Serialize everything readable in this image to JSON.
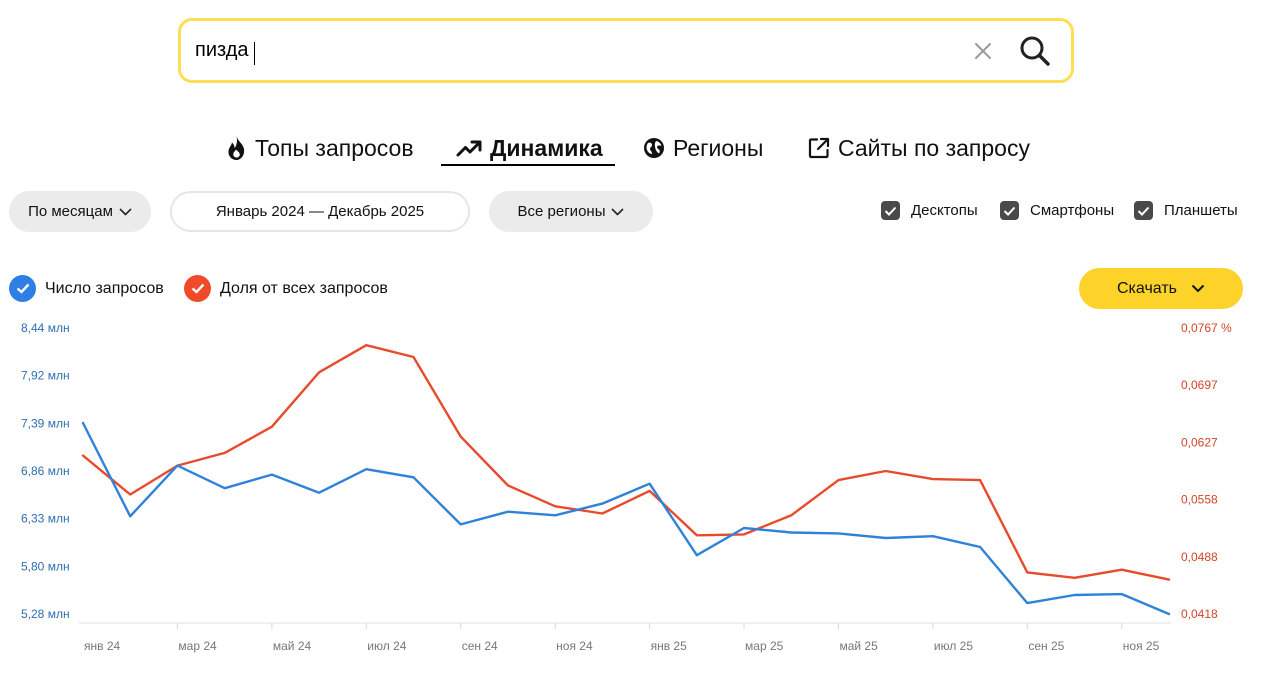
{
  "search": {
    "query": "пизда"
  },
  "tabs": [
    {
      "label": "Топы запросов",
      "icon": "flame-icon",
      "active": false
    },
    {
      "label": "Динамика",
      "icon": "trend-up-icon",
      "active": true
    },
    {
      "label": "Регионы",
      "icon": "globe-icon",
      "active": false
    },
    {
      "label": "Сайты по запросу",
      "icon": "external-link-icon",
      "active": false
    }
  ],
  "filters": {
    "period_label": "По месяцам",
    "date_range_label": "Январь 2024 — Декабрь 2025",
    "region_label": "Все регионы"
  },
  "devices": [
    {
      "label": "Десктопы",
      "checked": true
    },
    {
      "label": "Смартфоны",
      "checked": true
    },
    {
      "label": "Планшеты",
      "checked": true
    }
  ],
  "legend": {
    "requests_label": "Число запросов",
    "share_label": "Доля от всех запросов"
  },
  "download_label": "Скачать",
  "colors": {
    "accent_yellow": "#fdd32a",
    "search_border": "#fdde55",
    "series_requests": "#2f82d8",
    "series_share": "#e84b2c",
    "legend_blue": "#2e7ee6",
    "legend_red": "#f04a2a"
  },
  "chart_data": {
    "type": "line",
    "x_tick_labels": [
      "янв 24",
      "мар 24",
      "май 24",
      "июл 24",
      "сен 24",
      "ноя 24",
      "янв 25",
      "мар 25",
      "май 25",
      "июл 25",
      "сен 25",
      "ноя 25"
    ],
    "x": [
      "2024-01",
      "2024-02",
      "2024-03",
      "2024-04",
      "2024-05",
      "2024-06",
      "2024-07",
      "2024-08",
      "2024-09",
      "2024-10",
      "2024-11",
      "2024-12",
      "2025-01",
      "2025-02",
      "2025-03",
      "2025-04",
      "2025-05",
      "2025-06",
      "2025-07",
      "2025-08",
      "2025-09",
      "2025-10",
      "2025-11",
      "2025-12"
    ],
    "left_axis": {
      "ticks": [
        "8,44 млн",
        "7,92 млн",
        "7,39 млн",
        "6,86 млн",
        "6,33 млн",
        "5,80 млн",
        "5,28 млн"
      ],
      "ylim": [
        5.28,
        8.44
      ]
    },
    "right_axis": {
      "ticks": [
        "0,0767 %",
        "0,0697",
        "0,0627",
        "0,0558",
        "0,0488",
        "0,0418"
      ],
      "ylim": [
        0.0418,
        0.0767
      ]
    },
    "series": [
      {
        "name": "Число запросов",
        "axis": "left",
        "values": [
          7.39,
          6.36,
          6.92,
          6.67,
          6.82,
          6.62,
          6.88,
          6.79,
          6.27,
          6.41,
          6.37,
          6.5,
          6.72,
          5.93,
          6.23,
          6.18,
          6.17,
          6.12,
          6.14,
          6.02,
          5.4,
          5.49,
          5.5,
          5.28
        ]
      },
      {
        "name": "Доля от всех запросов",
        "axis": "left",
        "values": [
          7.03,
          6.6,
          6.92,
          7.06,
          7.35,
          7.95,
          8.25,
          8.12,
          7.24,
          6.7,
          6.47,
          6.39,
          6.64,
          6.15,
          6.16,
          6.37,
          6.76,
          6.86,
          6.77,
          6.76,
          5.74,
          5.68,
          5.77,
          5.66
        ]
      }
    ]
  }
}
